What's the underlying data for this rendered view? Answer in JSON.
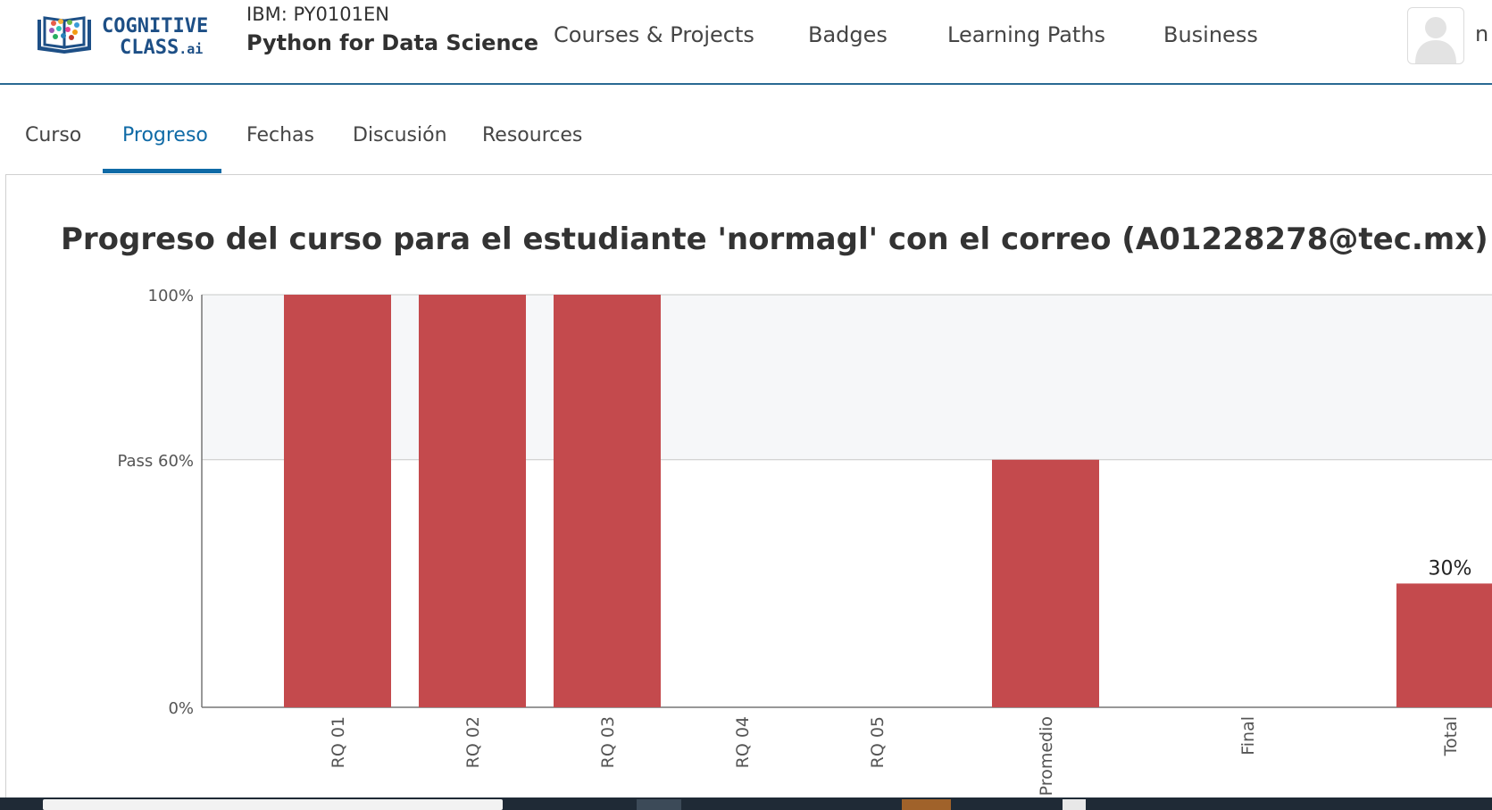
{
  "header": {
    "logo_text_line1": "COGNITIVE",
    "logo_text_line2": "CLASS",
    "logo_text_suffix": ".ai",
    "course_org": "IBM: PY0101EN",
    "course_name": "Python for Data Science",
    "nav": [
      {
        "label": "Courses & Projects"
      },
      {
        "label": "Badges"
      },
      {
        "label": "Learning Paths"
      },
      {
        "label": "Business"
      }
    ],
    "user_name_partial": "n"
  },
  "tabs": [
    {
      "label": "Curso",
      "active": false
    },
    {
      "label": "Progreso",
      "active": true
    },
    {
      "label": "Fechas",
      "active": false
    },
    {
      "label": "Discusión",
      "active": false
    },
    {
      "label": "Resources",
      "active": false
    }
  ],
  "page_title": "Progreso del curso para el estudiante 'normagl' con el correo (A01228278@tec.mx)",
  "colors": {
    "accent": "#0f6aa6",
    "bar": "#c44a4d",
    "pass_band": "#f6f7f9"
  },
  "chart_data": {
    "type": "bar",
    "categories": [
      "RQ 01",
      "RQ 02",
      "RQ 03",
      "RQ 04",
      "RQ 05",
      "Promedio",
      "Final",
      "Total"
    ],
    "values": [
      100,
      100,
      100,
      0,
      0,
      60,
      0,
      30
    ],
    "ylim": [
      0,
      100
    ],
    "yticks": [
      {
        "value": 0,
        "label": "0%"
      },
      {
        "value": 60,
        "label": "Pass 60%"
      },
      {
        "value": 100,
        "label": "100%"
      }
    ],
    "pass_threshold": 60,
    "data_labels": [
      {
        "category": "Total",
        "label": "30%"
      }
    ],
    "xlabel": "",
    "ylabel": ""
  }
}
